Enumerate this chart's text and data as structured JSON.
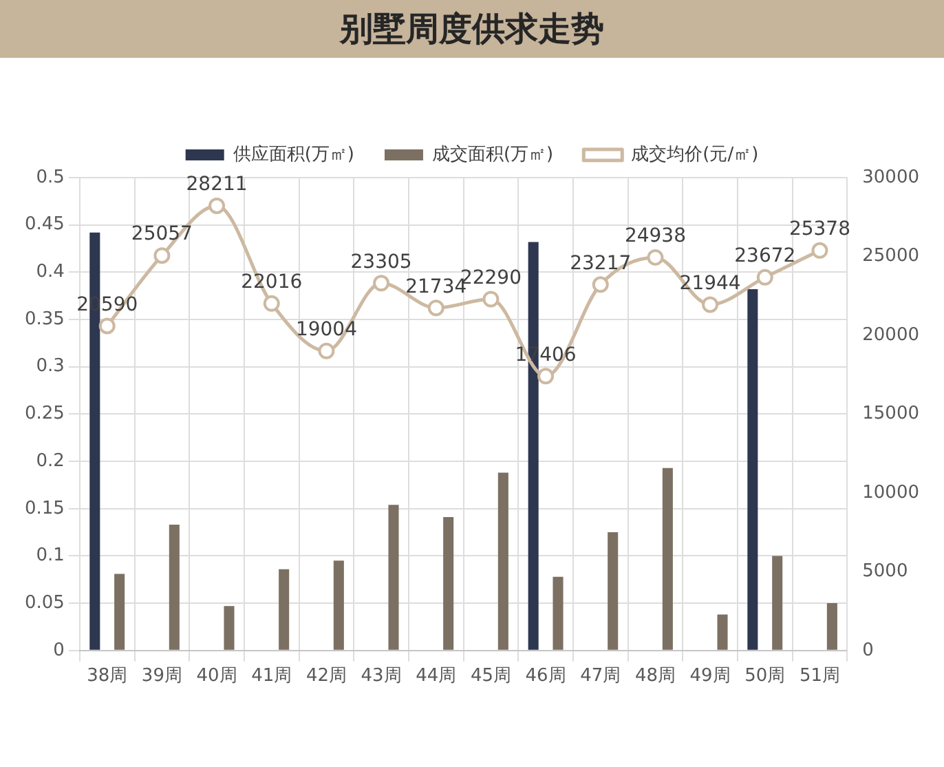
{
  "chart_data": {
    "type": "bar",
    "title": "别墅周度供求走势",
    "categories": [
      "38周",
      "39周",
      "40周",
      "41周",
      "42周",
      "43周",
      "44周",
      "45周",
      "46周",
      "47周",
      "48周",
      "49周",
      "50周",
      "51周"
    ],
    "series": [
      {
        "name": "供应面积(万㎡)",
        "color": "#2e3750",
        "values": [
          0.442,
          null,
          null,
          null,
          null,
          null,
          null,
          null,
          0.432,
          null,
          null,
          null,
          0.382,
          null
        ]
      },
      {
        "name": "成交面积(万㎡)",
        "color": "#7b7062",
        "values": [
          0.081,
          0.133,
          0.047,
          0.086,
          0.095,
          0.154,
          0.141,
          0.188,
          0.078,
          0.125,
          0.193,
          0.038,
          0.1,
          0.05
        ]
      },
      {
        "name": "成交均价(元/㎡)",
        "type": "line",
        "axis": "y2",
        "color": "#cdb9a1",
        "values": [
          20590,
          25057,
          28211,
          22016,
          19004,
          23305,
          21734,
          22290,
          17406,
          23217,
          24938,
          21944,
          23672,
          25378
        ],
        "value_labels": [
          "20590",
          "25057",
          "28211",
          "22016",
          "19004",
          "23305",
          "21734",
          "22290",
          "17406",
          "23217",
          "24938",
          "21944",
          "23672",
          "25378"
        ]
      }
    ],
    "ylim": [
      0,
      0.5
    ],
    "yticks": [
      0,
      0.05,
      0.1,
      0.15,
      0.2,
      0.25,
      0.3,
      0.35,
      0.4,
      0.45,
      0.5
    ],
    "y2lim": [
      0,
      30000
    ],
    "y2ticks": [
      0,
      5000,
      10000,
      15000,
      20000,
      25000,
      30000
    ],
    "grid": true,
    "legend": "top",
    "marker": "circle"
  }
}
